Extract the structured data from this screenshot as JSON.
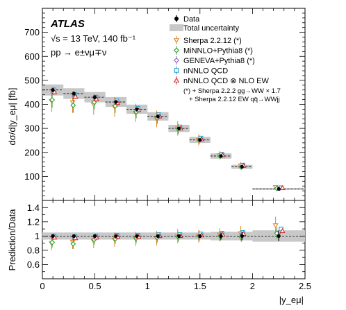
{
  "chart_data": {
    "type": "scatter",
    "experiment": "ATLAS",
    "info_lines": [
      "√s = 13 TeV, 140 fb⁻¹",
      "pp → e±νμ∓ν"
    ],
    "xlabel": "|y_eμ|",
    "ylabel_top": "dσ/d|y_eμ| [fb]",
    "ylabel_bottom": "Prediction/Data",
    "xlim": [
      0,
      2.5
    ],
    "ylim_top": [
      0,
      800
    ],
    "ylim_bottom": [
      0.4,
      1.5
    ],
    "x_ticks": [
      "0",
      "0.5",
      "1",
      "1.5",
      "2",
      "2.5"
    ],
    "y_ticks_top": [
      "100",
      "200",
      "300",
      "400",
      "500",
      "600",
      "700"
    ],
    "y_ticks_bottom": [
      "0.6",
      "0.8",
      "1",
      "1.2",
      "1.4"
    ],
    "bin_edges": [
      0,
      0.2,
      0.4,
      0.6,
      0.8,
      1.0,
      1.2,
      1.4,
      1.6,
      1.8,
      2.0,
      2.5
    ],
    "data": {
      "name": "Data",
      "values": [
        460,
        445,
        430,
        410,
        380,
        350,
        300,
        252,
        185,
        140,
        48
      ],
      "total_uncertainty_rel": [
        0.05,
        0.05,
        0.05,
        0.05,
        0.05,
        0.05,
        0.05,
        0.05,
        0.06,
        0.06,
        0.08
      ],
      "ratio_stat_err": [
        0.02,
        0.02,
        0.02,
        0.02,
        0.02,
        0.02,
        0.02,
        0.02,
        0.05,
        0.06,
        0.07
      ]
    },
    "legend": {
      "data_label": "Data",
      "band_label": "Total uncertainty",
      "note_line1": "(*) + Sherpa 2.2.2 gg→WW × 1.7",
      "note_line2": "+ Sherpa 2.2.12 EW qq̄→WWjj"
    },
    "series": [
      {
        "name": "Sherpa 2.2.12 (*)",
        "marker": "triangle-down",
        "color": "#e8821e",
        "ratio": [
          0.9,
          0.92,
          0.93,
          0.95,
          0.96,
          0.97,
          1.0,
          1.0,
          1.02,
          1.04,
          1.15
        ],
        "ratio_err": [
          0.1,
          0.1,
          0.1,
          0.1,
          0.1,
          0.1,
          0.1,
          0.09,
          0.09,
          0.1,
          0.12
        ]
      },
      {
        "name": "MiNNLO+Pythia8 (*)",
        "marker": "diamond",
        "color": "#2aa02a",
        "ratio": [
          0.91,
          0.89,
          0.95,
          0.96,
          0.97,
          0.98,
          0.99,
          1.0,
          1.0,
          0.99,
          1.04
        ],
        "ratio_err": [
          0.07,
          0.07,
          0.07,
          0.07,
          0.07,
          0.07,
          0.07,
          0.07,
          0.07,
          0.07,
          0.08
        ]
      },
      {
        "name": "GENEVA+Pythia8 (*)",
        "marker": "diamond",
        "color": "#9467bd",
        "ratio": [
          0.98,
          0.98,
          0.99,
          1.0,
          1.0,
          1.0,
          1.01,
          1.01,
          1.02,
          1.03,
          1.06
        ],
        "ratio_err": [
          0.02,
          0.02,
          0.02,
          0.02,
          0.02,
          0.02,
          0.02,
          0.02,
          0.02,
          0.02,
          0.03
        ]
      },
      {
        "name": "nNNLO QCD",
        "marker": "square",
        "color": "#1f9fd8",
        "ratio": [
          1.0,
          0.99,
          1.0,
          1.01,
          1.01,
          1.02,
          1.02,
          1.03,
          1.04,
          1.05,
          1.1
        ],
        "ratio_err": [
          0.02,
          0.02,
          0.02,
          0.02,
          0.02,
          0.02,
          0.02,
          0.02,
          0.02,
          0.02,
          0.03
        ]
      },
      {
        "name": "nNNLO QCD ⊗ NLO EW",
        "marker": "triangle-up",
        "color": "#d62728",
        "ratio": [
          0.98,
          0.97,
          0.98,
          0.99,
          0.99,
          1.0,
          1.0,
          1.01,
          1.02,
          1.03,
          1.07
        ],
        "ratio_err": [
          0.02,
          0.02,
          0.02,
          0.02,
          0.02,
          0.02,
          0.02,
          0.02,
          0.02,
          0.02,
          0.03
        ]
      }
    ]
  }
}
